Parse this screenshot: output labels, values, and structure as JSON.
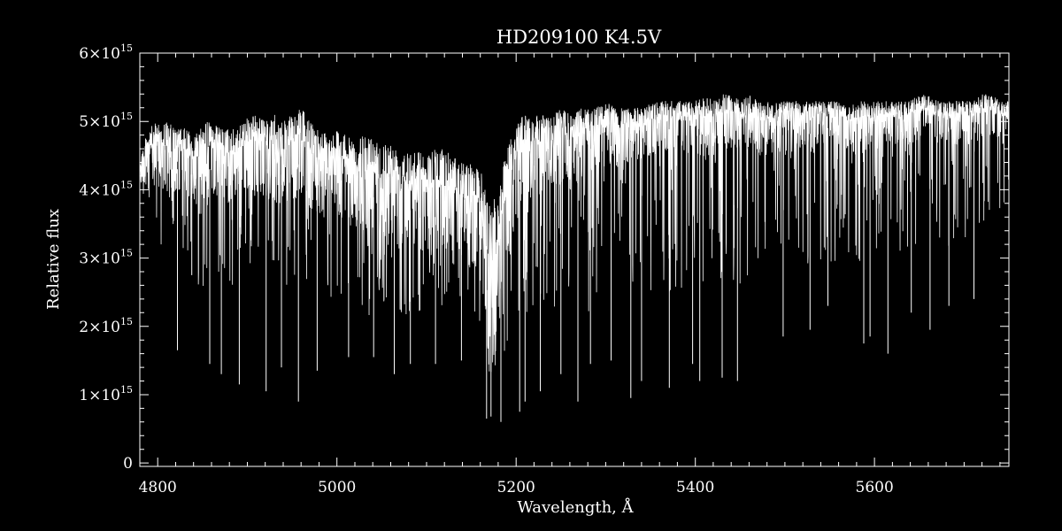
{
  "colors": {
    "background": "#000000",
    "foreground": "#ffffff"
  },
  "chart_data": {
    "type": "line",
    "title": "HD209100   K4.5V",
    "xlabel": "Wavelength, Å",
    "ylabel": "Relative flux",
    "xlim": [
      4780,
      5750
    ],
    "ylim": [
      -50000000000000.0,
      6000000000000000.0
    ],
    "grid": false,
    "x_ticks": [
      {
        "value": 4800,
        "label": "4800"
      },
      {
        "value": 5000,
        "label": "5000"
      },
      {
        "value": 5200,
        "label": "5200"
      },
      {
        "value": 5400,
        "label": "5400"
      },
      {
        "value": 5600,
        "label": "5600"
      }
    ],
    "y_ticks": [
      {
        "value": 0,
        "label": "0",
        "sup": ""
      },
      {
        "value": 1000000000000000.0,
        "label": "1×10",
        "sup": "15"
      },
      {
        "value": 2000000000000000.0,
        "label": "2×10",
        "sup": "15"
      },
      {
        "value": 3000000000000000.0,
        "label": "3×10",
        "sup": "15"
      },
      {
        "value": 4000000000000000.0,
        "label": "4×10",
        "sup": "15"
      },
      {
        "value": 5000000000000000.0,
        "label": "5×10",
        "sup": "15"
      },
      {
        "value": 6000000000000000.0,
        "label": "6×10",
        "sup": "15"
      }
    ],
    "series": [
      {
        "color": "#ffffff",
        "x": [
          4780,
          4790,
          4800,
          4810,
          4820,
          4830,
          4840,
          4850,
          4860,
          4870,
          4880,
          4890,
          4900,
          4910,
          4920,
          4930,
          4940,
          4950,
          4960,
          4970,
          4980,
          4990,
          5000,
          5010,
          5020,
          5030,
          5040,
          5050,
          5060,
          5070,
          5080,
          5090,
          5100,
          5110,
          5120,
          5130,
          5140,
          5150,
          5160,
          5170,
          5180,
          5190,
          5200,
          5210,
          5220,
          5230,
          5240,
          5250,
          5260,
          5270,
          5280,
          5290,
          5300,
          5310,
          5320,
          5330,
          5340,
          5350,
          5360,
          5370,
          5380,
          5390,
          5400,
          5410,
          5420,
          5430,
          5440,
          5450,
          5460,
          5470,
          5480,
          5490,
          5500,
          5510,
          5520,
          5530,
          5540,
          5550,
          5560,
          5570,
          5580,
          5590,
          5600,
          5610,
          5620,
          5630,
          5640,
          5650,
          5660,
          5670,
          5680,
          5690,
          5700,
          5710,
          5720,
          5730,
          5740,
          5750
        ],
        "y_upper": [
          4500000000000000.0,
          4900000000000000.0,
          5000000000000000.0,
          5000000000000000.0,
          4900000000000000.0,
          4900000000000000.0,
          4800000000000000.0,
          5000000000000000.0,
          5000000000000000.0,
          4900000000000000.0,
          4900000000000000.0,
          4900000000000000.0,
          5100000000000000.0,
          5100000000000000.0,
          5000000000000000.0,
          5100000000000000.0,
          5000000000000000.0,
          5100000000000000.0,
          5200000000000000.0,
          5000000000000000.0,
          4900000000000000.0,
          4800000000000000.0,
          4900000000000000.0,
          4800000000000000.0,
          4700000000000000.0,
          4800000000000000.0,
          4800000000000000.0,
          4700000000000000.0,
          4700000000000000.0,
          4600000000000000.0,
          4600000000000000.0,
          4600000000000000.0,
          4500000000000000.0,
          4600000000000000.0,
          4600000000000000.0,
          4500000000000000.0,
          4400000000000000.0,
          4400000000000000.0,
          4300000000000000.0,
          3800000000000000.0,
          4000000000000000.0,
          4700000000000000.0,
          5000000000000000.0,
          5100000000000000.0,
          5100000000000000.0,
          5100000000000000.0,
          5100000000000000.0,
          5200000000000000.0,
          5100000000000000.0,
          5200000000000000.0,
          5200000000000000.0,
          5200000000000000.0,
          5300000000000000.0,
          5200000000000000.0,
          5200000000000000.0,
          5200000000000000.0,
          5200000000000000.0,
          5300000000000000.0,
          5300000000000000.0,
          5300000000000000.0,
          5300000000000000.0,
          5300000000000000.0,
          5300000000000000.0,
          5400000000000000.0,
          5300000000000000.0,
          5400000000000000.0,
          5400000000000000.0,
          5300000000000000.0,
          5400000000000000.0,
          5300000000000000.0,
          5300000000000000.0,
          5300000000000000.0,
          5300000000000000.0,
          5300000000000000.0,
          5300000000000000.0,
          5300000000000000.0,
          5300000000000000.0,
          5300000000000000.0,
          5300000000000000.0,
          5200000000000000.0,
          5300000000000000.0,
          5300000000000000.0,
          5300000000000000.0,
          5300000000000000.0,
          5300000000000000.0,
          5300000000000000.0,
          5300000000000000.0,
          5400000000000000.0,
          5400000000000000.0,
          5300000000000000.0,
          5300000000000000.0,
          5300000000000000.0,
          5300000000000000.0,
          5300000000000000.0,
          5400000000000000.0,
          5400000000000000.0,
          5300000000000000.0,
          5300000000000000.0
        ],
        "y_typical": [
          4200000000000000.0,
          4400000000000000.0,
          4400000000000000.0,
          4300000000000000.0,
          4300000000000000.0,
          4300000000000000.0,
          4200000000000000.0,
          4300000000000000.0,
          4300000000000000.0,
          4300000000000000.0,
          4200000000000000.0,
          4300000000000000.0,
          4400000000000000.0,
          4400000000000000.0,
          4300000000000000.0,
          4300000000000000.0,
          4200000000000000.0,
          4300000000000000.0,
          4400000000000000.0,
          4200000000000000.0,
          4100000000000000.0,
          4000000000000000.0,
          4100000000000000.0,
          4000000000000000.0,
          3900000000000000.0,
          3900000000000000.0,
          3900000000000000.0,
          3800000000000000.0,
          3800000000000000.0,
          3700000000000000.0,
          3700000000000000.0,
          3700000000000000.0,
          3600000000000000.0,
          3600000000000000.0,
          3600000000000000.0,
          3500000000000000.0,
          3500000000000000.0,
          3400000000000000.0,
          3300000000000000.0,
          2200000000000000.0,
          2400000000000000.0,
          3600000000000000.0,
          4000000000000000.0,
          4300000000000000.0,
          4300000000000000.0,
          4400000000000000.0,
          4400000000000000.0,
          4500000000000000.0,
          4400000000000000.0,
          4500000000000000.0,
          4600000000000000.0,
          4600000000000000.0,
          4700000000000000.0,
          4600000000000000.0,
          4700000000000000.0,
          4700000000000000.0,
          4700000000000000.0,
          4800000000000000.0,
          4800000000000000.0,
          4800000000000000.0,
          4800000000000000.0,
          4800000000000000.0,
          4800000000000000.0,
          4800000000000000.0,
          4800000000000000.0,
          4900000000000000.0,
          4900000000000000.0,
          4800000000000000.0,
          4900000000000000.0,
          4800000000000000.0,
          4800000000000000.0,
          4800000000000000.0,
          4800000000000000.0,
          4800000000000000.0,
          4900000000000000.0,
          4800000000000000.0,
          4900000000000000.0,
          4900000000000000.0,
          4900000000000000.0,
          4800000000000000.0,
          4800000000000000.0,
          4800000000000000.0,
          4900000000000000.0,
          4900000000000000.0,
          4900000000000000.0,
          4900000000000000.0,
          4900000000000000.0,
          5000000000000000.0,
          5000000000000000.0,
          4900000000000000.0,
          4900000000000000.0,
          4900000000000000.0,
          4900000000000000.0,
          4900000000000000.0,
          5000000000000000.0,
          5000000000000000.0,
          4900000000000000.0,
          4900000000000000.0
        ],
        "y_lower": [
          3800000000000000.0,
          3400000000000000.0,
          3200000000000000.0,
          3100000000000000.0,
          2900000000000000.0,
          3000000000000000.0,
          2700000000000000.0,
          2500000000000000.0,
          2400000000000000.0,
          2200000000000000.0,
          2400000000000000.0,
          2500000000000000.0,
          2800000000000000.0,
          2800000000000000.0,
          2600000000000000.0,
          2700000000000000.0,
          2600000000000000.0,
          2600000000000000.0,
          2700000000000000.0,
          2400000000000000.0,
          2200000000000000.0,
          2200000000000000.0,
          2400000000000000.0,
          2300000000000000.0,
          2200000000000000.0,
          2100000000000000.0,
          2200000000000000.0,
          2100000000000000.0,
          2100000000000000.0,
          2100000000000000.0,
          2200000000000000.0,
          2200000000000000.0,
          2300000000000000.0,
          2300000000000000.0,
          2200000000000000.0,
          2200000000000000.0,
          2200000000000000.0,
          2100000000000000.0,
          2000000000000000.0,
          1500000000000000.0,
          1300000000000000.0,
          1700000000000000.0,
          1900000000000000.0,
          2100000000000000.0,
          2200000000000000.0,
          2300000000000000.0,
          2200000000000000.0,
          2100000000000000.0,
          2200000000000000.0,
          2300000000000000.0,
          2200000000000000.0,
          2300000000000000.0,
          2400000000000000.0,
          2300000000000000.0,
          2400000000000000.0,
          2400000000000000.0,
          2300000000000000.0,
          2400000000000000.0,
          2400000000000000.0,
          2400000000000000.0,
          2400000000000000.0,
          2500000000000000.0,
          2500000000000000.0,
          2500000000000000.0,
          2500000000000000.0,
          2600000000000000.0,
          2600000000000000.0,
          2600000000000000.0,
          2700000000000000.0,
          2700000000000000.0,
          2700000000000000.0,
          2800000000000000.0,
          2800000000000000.0,
          2800000000000000.0,
          2900000000000000.0,
          2800000000000000.0,
          2800000000000000.0,
          2900000000000000.0,
          2900000000000000.0,
          2700000000000000.0,
          2500000000000000.0,
          2600000000000000.0,
          2800000000000000.0,
          3000000000000000.0,
          3000000000000000.0,
          3000000000000000.0,
          3100000000000000.0,
          3100000000000000.0,
          3100000000000000.0,
          3100000000000000.0,
          3100000000000000.0,
          3200000000000000.0,
          3200000000000000.0,
          3200000000000000.0,
          3300000000000000.0,
          3400000000000000.0,
          3400000000000000.0,
          3500000000000000.0
        ],
        "deep_lines": [
          {
            "x": 4822,
            "y": 1650000000000000.0
          },
          {
            "x": 4838,
            "y": 2750000000000000.0
          },
          {
            "x": 4858,
            "y": 1450000000000000.0
          },
          {
            "x": 4871,
            "y": 1300000000000000.0
          },
          {
            "x": 4891,
            "y": 1150000000000000.0
          },
          {
            "x": 4921,
            "y": 1050000000000000.0
          },
          {
            "x": 4938,
            "y": 1400000000000000.0
          },
          {
            "x": 4957,
            "y": 900000000000000.0
          },
          {
            "x": 4978,
            "y": 1350000000000000.0
          },
          {
            "x": 5013,
            "y": 1550000000000000.0
          },
          {
            "x": 5041,
            "y": 1550000000000000.0
          },
          {
            "x": 5064,
            "y": 1300000000000000.0
          },
          {
            "x": 5082,
            "y": 1450000000000000.0
          },
          {
            "x": 5110,
            "y": 1450000000000000.0
          },
          {
            "x": 5139,
            "y": 1500000000000000.0
          },
          {
            "x": 5167,
            "y": 650000000000000.0
          },
          {
            "x": 5172,
            "y": 680000000000000.0
          },
          {
            "x": 5183,
            "y": 600000000000000.0
          },
          {
            "x": 5204,
            "y": 750000000000000.0
          },
          {
            "x": 5210,
            "y": 900000000000000.0
          },
          {
            "x": 5227,
            "y": 1050000000000000.0
          },
          {
            "x": 5250,
            "y": 1300000000000000.0
          },
          {
            "x": 5269,
            "y": 900000000000000.0
          },
          {
            "x": 5283,
            "y": 1450000000000000.0
          },
          {
            "x": 5306,
            "y": 1500000000000000.0
          },
          {
            "x": 5328,
            "y": 950000000000000.0
          },
          {
            "x": 5340,
            "y": 1200000000000000.0
          },
          {
            "x": 5371,
            "y": 1100000000000000.0
          },
          {
            "x": 5397,
            "y": 1450000000000000.0
          },
          {
            "x": 5405,
            "y": 1200000000000000.0
          },
          {
            "x": 5430,
            "y": 1250000000000000.0
          },
          {
            "x": 5447,
            "y": 1200000000000000.0
          },
          {
            "x": 5498,
            "y": 1850000000000000.0
          },
          {
            "x": 5528,
            "y": 1950000000000000.0
          },
          {
            "x": 5548,
            "y": 2300000000000000.0
          },
          {
            "x": 5588,
            "y": 1750000000000000.0
          },
          {
            "x": 5595,
            "y": 1850000000000000.0
          },
          {
            "x": 5615,
            "y": 1600000000000000.0
          },
          {
            "x": 5641,
            "y": 2200000000000000.0
          },
          {
            "x": 5662,
            "y": 1950000000000000.0
          },
          {
            "x": 5683,
            "y": 2300000000000000.0
          },
          {
            "x": 5711,
            "y": 2400000000000000.0
          }
        ]
      }
    ]
  }
}
